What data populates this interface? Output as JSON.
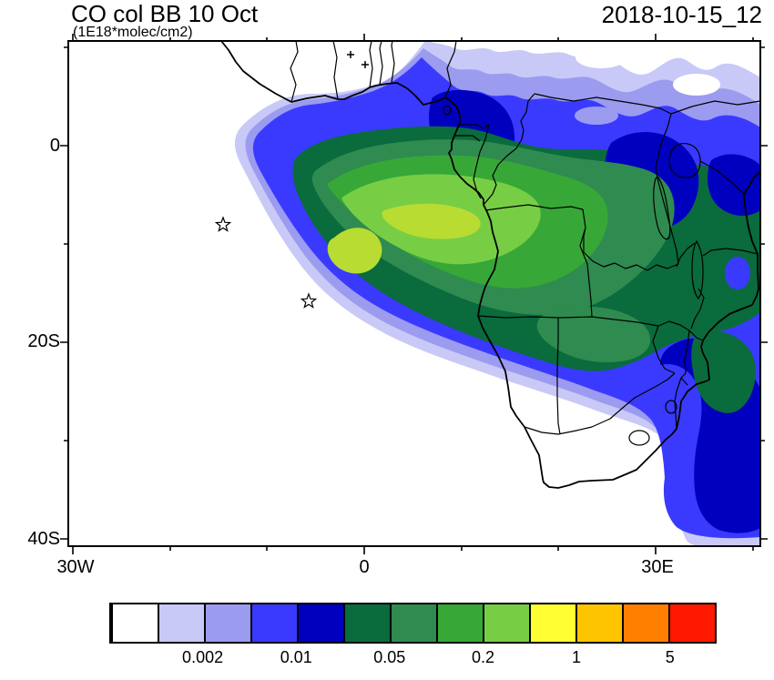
{
  "header": {
    "title": "CO col BB 10 Oct",
    "subtitle": "(1E18*molec/cm2)",
    "timestamp": "2018-10-15_12"
  },
  "axes": {
    "y_ticks": [
      "0",
      "20S",
      "40S"
    ],
    "x_ticks": [
      "30W",
      "0",
      "30E"
    ]
  },
  "chart_data": {
    "type": "heatmap",
    "title": "CO col BB 10 Oct",
    "units": "1E18*molec/cm2",
    "time_label": "2018-10-15_12",
    "projection": "lat-lon map of Africa and South Atlantic with country borders",
    "x_axis": {
      "tick_labels": [
        "30W",
        "0",
        "30E"
      ],
      "range_lon_deg": [
        -30.5,
        40.8
      ]
    },
    "y_axis": {
      "tick_labels": [
        "0",
        "20S",
        "40S"
      ],
      "range_lat_deg": [
        10.6,
        -40.7
      ]
    },
    "colorbar": {
      "tick_labels": [
        "0.002",
        "0.01",
        "0.05",
        "0.2",
        "1",
        "5"
      ],
      "level_boundaries_est": [
        0.001,
        0.002,
        0.005,
        0.01,
        0.02,
        0.05,
        0.1,
        0.2,
        0.5,
        1,
        2,
        5
      ],
      "colors": [
        "#FFFFFF",
        "#C9C9F7",
        "#9B9BF0",
        "#3A3AFF",
        "#0000BE",
        "#0A6B3D",
        "#2F8B4F",
        "#37A837",
        "#77CE45",
        "#FFFF33",
        "#FFC400",
        "#FF7F00",
        "#FF1900"
      ],
      "color_names": [
        "white",
        "pale-lavender",
        "periwinkle",
        "blue",
        "dark-blue",
        "dark-green",
        "sea-green",
        "green",
        "light-green",
        "yellow",
        "amber",
        "orange",
        "red"
      ]
    },
    "core_color_est": "#B9DC32",
    "field_description": "Biomass-burning CO column plume: yellow-green maximum (~0.5-1) over the SE Atlantic off Angola (~8-16S, 0-8E), green/dark-green over central-southern Africa, blue and purple fringes north over the Gulf of Guinea and east over East Africa, with a blue band wrapping south along the Mozambique / South Africa east coast",
    "markers": [
      {
        "symbol": "open-star",
        "lon_deg": -14.5,
        "lat_deg": -8.1
      },
      {
        "symbol": "open-star",
        "lon_deg": -5.7,
        "lat_deg": -15.8
      },
      {
        "symbol": "cross",
        "lon_deg": -1.4,
        "lat_deg": 9.3
      },
      {
        "symbol": "cross",
        "lon_deg": 0.1,
        "lat_deg": 8.2
      }
    ]
  }
}
